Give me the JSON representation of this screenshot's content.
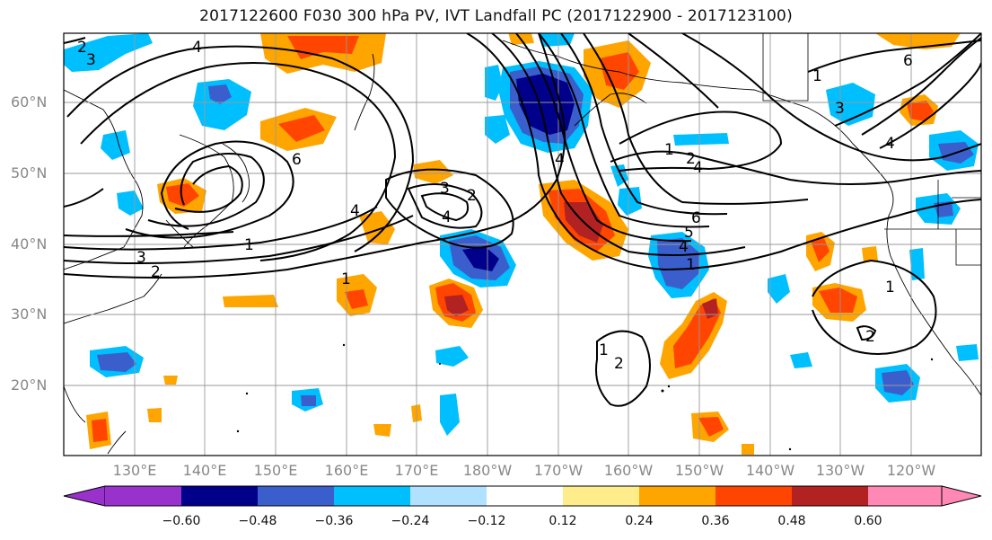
{
  "title": "2017122600 F030 300 hPa PV, IVT Landfall PC (2017122900 - 2017123100)",
  "latitude_labels": [
    "60°N",
    "50°N",
    "40°N",
    "30°N",
    "20°N"
  ],
  "longitude_labels": [
    "130°E",
    "140°E",
    "150°E",
    "160°E",
    "170°E",
    "180°W",
    "170°W",
    "160°W",
    "150°W",
    "140°W",
    "130°W",
    "120°W"
  ],
  "colorbar": {
    "tick_labels": [
      "−0.60",
      "−0.48",
      "−0.36",
      "−0.24",
      "−0.12",
      "0.12",
      "0.24",
      "0.36",
      "0.48",
      "0.60"
    ],
    "colors": [
      "#9932cc",
      "#00008b",
      "#3a5fcd",
      "#00bfff",
      "#b0e2ff",
      "#ffffff",
      "#ffec8b",
      "#ffa500",
      "#ff4500",
      "#b22222",
      "#ff88b4"
    ]
  },
  "contour_labels": [
    "1",
    "2",
    "3",
    "4",
    "5",
    "6"
  ]
}
